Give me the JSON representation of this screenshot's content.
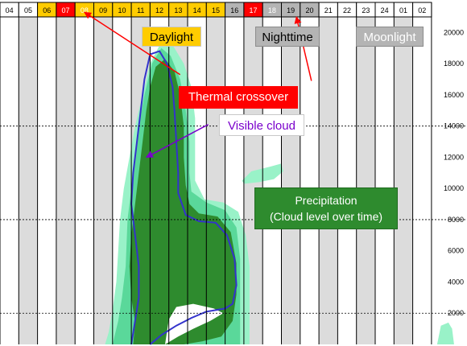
{
  "chart_data": {
    "type": "area",
    "hour_labels": [
      "04",
      "05",
      "06",
      "07",
      "08",
      "09",
      "10",
      "11",
      "12",
      "13",
      "14",
      "15",
      "16",
      "17",
      "18",
      "19",
      "20",
      "21",
      "22",
      "23",
      "24",
      "01",
      "02"
    ],
    "hour_band_colors": [
      "#ffffff",
      "#ffffff",
      "#ffcc00",
      "#ff0000",
      "#ffcc00",
      "#ffcc00",
      "#ffcc00",
      "#ffcc00",
      "#ffcc00",
      "#ffcc00",
      "#ffcc00",
      "#ffcc00",
      "#b4b4b4",
      "#ff0000",
      "#b4b4b4",
      "#b4b4b4",
      "#b4b4b4",
      "#ffffff",
      "#ffffff",
      "#ffffff",
      "#ffffff",
      "#ffffff",
      "#ffffff"
    ],
    "hour_text_colors": [
      "#000000",
      "#000000",
      "#000000",
      "#ffffff",
      "#ffffff",
      "#000000",
      "#000000",
      "#000000",
      "#000000",
      "#000000",
      "#000000",
      "#000000",
      "#000000",
      "#ffffff",
      "#ffffff",
      "#000000",
      "#000000",
      "#000000",
      "#000000",
      "#000000",
      "#000000",
      "#000000",
      "#000000"
    ],
    "y_ticks": [
      2000,
      4000,
      6000,
      8000,
      10000,
      12000,
      14000,
      16000,
      18000,
      20000
    ],
    "ylim": [
      0,
      21000
    ],
    "gridlines_dashed_at": [
      2000,
      8000,
      14000
    ],
    "column_shading": {
      "odd_columns": "#dcdcdc",
      "even_columns": "#ffffff"
    },
    "series": [
      {
        "color": "#99f2c8",
        "points": [
          [
            5.6,
            0
          ],
          [
            5.8,
            800
          ],
          [
            6.0,
            2200
          ],
          [
            6.2,
            4000
          ],
          [
            6.3,
            6000
          ],
          [
            6.4,
            8000
          ],
          [
            6.6,
            10000
          ],
          [
            6.9,
            12000
          ],
          [
            7.2,
            14000
          ],
          [
            7.6,
            16000
          ],
          [
            8.0,
            18000
          ],
          [
            8.6,
            19400
          ],
          [
            9.2,
            19200
          ],
          [
            9.8,
            18000
          ],
          [
            10.2,
            16500
          ],
          [
            10.4,
            14500
          ],
          [
            10.4,
            12000
          ],
          [
            10.4,
            10500
          ],
          [
            10.9,
            9300
          ],
          [
            11.9,
            9100
          ],
          [
            12.7,
            8500
          ],
          [
            13.1,
            7000
          ],
          [
            13.3,
            5000
          ],
          [
            13.3,
            3000
          ],
          [
            13.3,
            1200
          ],
          [
            13.3,
            0
          ]
        ]
      },
      {
        "color": "#5ad89a",
        "points": [
          [
            6.0,
            0
          ],
          [
            6.3,
            1500
          ],
          [
            6.5,
            3000
          ],
          [
            6.7,
            5000
          ],
          [
            6.8,
            8000
          ],
          [
            7.0,
            10000
          ],
          [
            7.2,
            12000
          ],
          [
            7.4,
            14000
          ],
          [
            7.7,
            16000
          ],
          [
            8.1,
            18000
          ],
          [
            8.6,
            19000
          ],
          [
            9.1,
            18500
          ],
          [
            9.6,
            17000
          ],
          [
            9.9,
            15000
          ],
          [
            10.1,
            13000
          ],
          [
            10.1,
            11000
          ],
          [
            10.2,
            9800
          ],
          [
            11.0,
            9100
          ],
          [
            12.0,
            8600
          ],
          [
            12.6,
            7500
          ],
          [
            12.8,
            5500
          ],
          [
            12.8,
            3500
          ],
          [
            12.8,
            1800
          ],
          [
            12.8,
            0
          ]
        ]
      },
      {
        "color": "#2e8b2e",
        "points": [
          [
            7.1,
            0
          ],
          [
            7.2,
            1400
          ],
          [
            7.0,
            3000
          ],
          [
            6.9,
            5000
          ],
          [
            7.0,
            7000
          ],
          [
            7.2,
            9000
          ],
          [
            7.4,
            11000
          ],
          [
            7.6,
            13000
          ],
          [
            7.8,
            15000
          ],
          [
            8.0,
            16500
          ],
          [
            8.3,
            17800
          ],
          [
            8.8,
            18300
          ],
          [
            9.3,
            17500
          ],
          [
            9.6,
            16000
          ],
          [
            9.8,
            14000
          ],
          [
            9.8,
            12000
          ],
          [
            9.9,
            10200
          ],
          [
            10.1,
            9000
          ],
          [
            10.6,
            8400
          ],
          [
            11.6,
            8200
          ],
          [
            12.3,
            7200
          ],
          [
            12.6,
            5200
          ],
          [
            12.6,
            3200
          ],
          [
            12.4,
            1500
          ],
          [
            11.8,
            500
          ],
          [
            10.8,
            200
          ],
          [
            9.8,
            0
          ]
        ]
      },
      {
        "color": "#ffffff",
        "points": [
          [
            8.8,
            0
          ],
          [
            9.5,
            500
          ],
          [
            10.3,
            1000
          ],
          [
            11.2,
            1500
          ],
          [
            11.9,
            2000
          ],
          [
            11.4,
            2300
          ],
          [
            10.3,
            2600
          ],
          [
            9.4,
            2400
          ],
          [
            9.0,
            1600
          ]
        ]
      },
      {
        "color": "#99f2c8",
        "points": [
          [
            23.5,
            1200
          ],
          [
            23.9,
            1400
          ],
          [
            24.1,
            1000
          ],
          [
            24.2,
            0
          ],
          [
            23.3,
            0
          ]
        ]
      },
      {
        "color": "#99f2c8",
        "points": [
          [
            12.9,
            10500
          ],
          [
            13.4,
            11100
          ],
          [
            14.4,
            11400
          ],
          [
            15.0,
            11600
          ],
          [
            15.1,
            11100
          ],
          [
            14.6,
            10600
          ],
          [
            13.8,
            10400
          ],
          [
            13.0,
            10300
          ]
        ]
      }
    ],
    "visible_cloud_line": {
      "color": "#3333cc",
      "points": [
        [
          7.0,
          0
        ],
        [
          7.2,
          1500
        ],
        [
          7.4,
          3000
        ],
        [
          7.4,
          5000
        ],
        [
          7.2,
          7000
        ],
        [
          7.0,
          9000
        ],
        [
          7.1,
          11000
        ],
        [
          7.3,
          13000
        ],
        [
          7.5,
          15000
        ],
        [
          7.7,
          17000
        ],
        [
          8.0,
          18600
        ],
        [
          8.5,
          18800
        ],
        [
          8.9,
          18000
        ],
        [
          9.2,
          16500
        ],
        [
          9.3,
          15000
        ],
        [
          9.4,
          13000
        ],
        [
          9.5,
          11000
        ],
        [
          9.5,
          9700
        ],
        [
          9.9,
          8300
        ],
        [
          10.6,
          7900
        ],
        [
          11.5,
          7800
        ],
        [
          12.1,
          7000
        ],
        [
          12.5,
          5500
        ],
        [
          12.6,
          3800
        ],
        [
          12.4,
          2600
        ],
        [
          12.0,
          2300
        ],
        [
          11.0,
          2100
        ],
        [
          10.2,
          1700
        ],
        [
          9.4,
          1200
        ],
        [
          8.6,
          600
        ],
        [
          8.0,
          0
        ]
      ]
    },
    "annotations": {
      "daylight": "Daylight",
      "nighttime": "Nighttime",
      "moonlight": "Moonlight",
      "thermal_crossover": "Thermal crossover",
      "visible_cloud": "Visible cloud",
      "precipitation_line1": "Precipitation",
      "precipitation_line2": "(Cloud level over time)"
    },
    "arrows": [
      {
        "name": "thermal-arrow-1",
        "color": "#ff0000",
        "from": [
          9.6,
          17300
        ],
        "to": [
          4.5,
          21300
        ]
      },
      {
        "name": "thermal-arrow-2",
        "color": "#ff0000",
        "from": [
          16.6,
          16900
        ],
        "to": [
          15.8,
          21000
        ]
      },
      {
        "name": "visible-arrow",
        "color": "#7a00cc",
        "from": [
          11.1,
          14100
        ],
        "to": [
          7.8,
          12000
        ]
      }
    ]
  }
}
